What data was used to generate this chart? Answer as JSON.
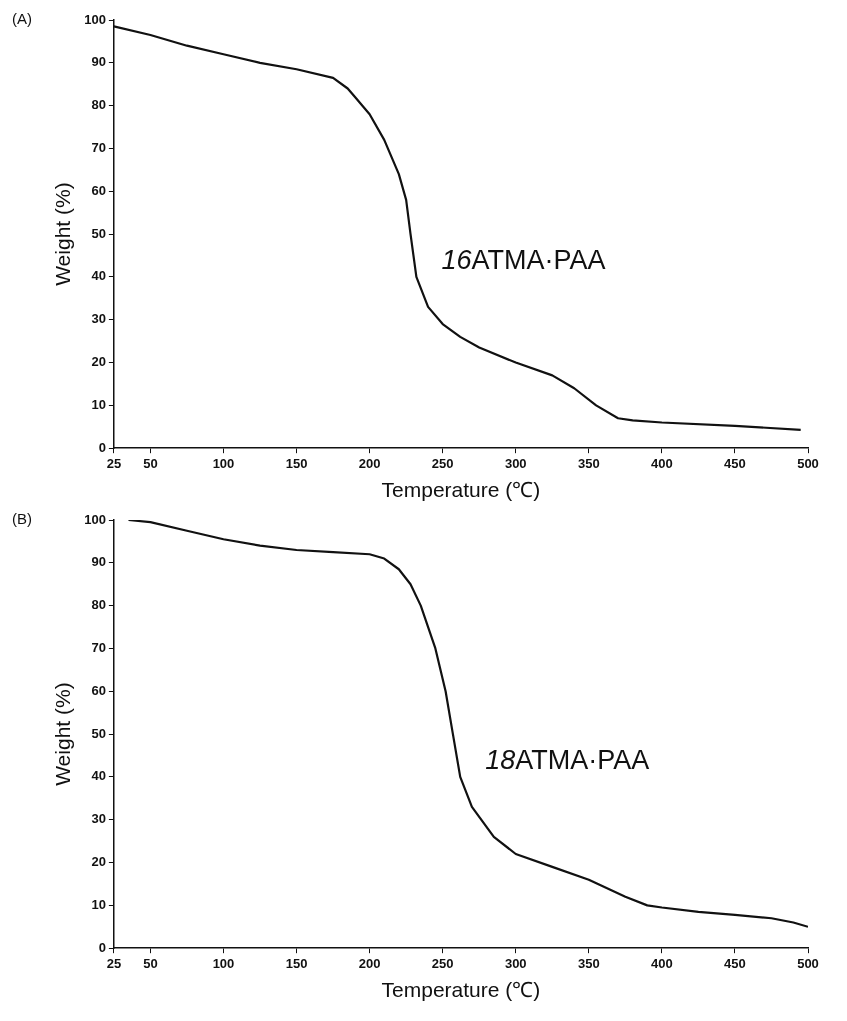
{
  "chart_data": [
    {
      "type": "line",
      "title": "(A)",
      "xlabel": "Temperature (℃)",
      "ylabel": "Weight (%)",
      "series": [
        {
          "color": "#111111",
          "x": [
            25,
            50,
            75,
            100,
            125,
            150,
            175,
            185,
            190,
            200,
            210,
            220,
            225,
            228,
            232,
            240,
            250,
            262,
            275,
            300,
            325,
            340,
            355,
            370,
            380,
            400,
            450,
            495
          ],
          "values": [
            98.5,
            96.5,
            94,
            92,
            90,
            88.5,
            86.5,
            84,
            82,
            78,
            72,
            64,
            58,
            50,
            40,
            33,
            29,
            26,
            23.5,
            20,
            17,
            14,
            10,
            7,
            6.5,
            6,
            5.2,
            4.3
          ]
        }
      ],
      "annotations": [
        "16ATMA·PAA"
      ],
      "xlim": [
        25,
        500
      ],
      "xticks": [
        25,
        50,
        100,
        150,
        200,
        250,
        300,
        350,
        400,
        450,
        500
      ],
      "ylim": [
        0,
        100
      ],
      "yticks": [
        0,
        10,
        20,
        30,
        40,
        50,
        60,
        70,
        80,
        90,
        100
      ],
      "grid": false,
      "legend": false,
      "marker": "none",
      "line_style": "solid"
    },
    {
      "type": "line",
      "title": "(B)",
      "xlabel": "Temperature (℃)",
      "ylabel": "Weight (%)",
      "series": [
        {
          "color": "#111111",
          "x": [
            35,
            50,
            75,
            100,
            125,
            150,
            175,
            200,
            210,
            220,
            228,
            235,
            245,
            252,
            257,
            262,
            270,
            285,
            300,
            325,
            350,
            375,
            390,
            400,
            425,
            450,
            475,
            490,
            500
          ],
          "values": [
            100,
            99.5,
            97.5,
            95.5,
            94,
            93,
            92.5,
            92,
            91,
            88.5,
            85,
            80,
            70,
            60,
            50,
            40,
            33,
            26,
            22,
            19,
            16,
            12,
            10,
            9.5,
            8.5,
            7.8,
            7,
            6,
            5
          ]
        }
      ],
      "annotations": [
        "18ATMA·PAA"
      ],
      "xlim": [
        25,
        500
      ],
      "xticks": [
        25,
        50,
        100,
        150,
        200,
        250,
        300,
        350,
        400,
        450,
        500
      ],
      "ylim": [
        0,
        100
      ],
      "yticks": [
        0,
        10,
        20,
        30,
        40,
        50,
        60,
        70,
        80,
        90,
        100
      ],
      "grid": false,
      "legend": false,
      "marker": "none",
      "line_style": "solid"
    }
  ]
}
